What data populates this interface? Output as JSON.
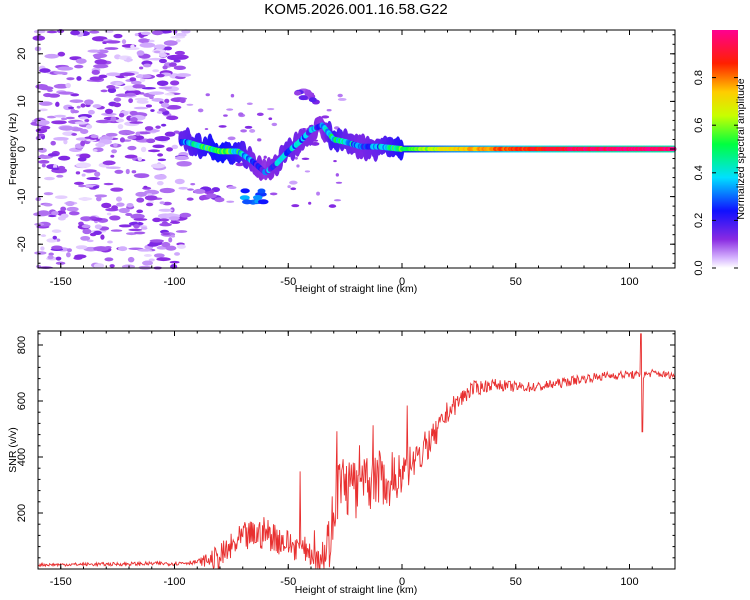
{
  "title": "KOM5.2026.001.16.58.G22",
  "chart_data": [
    {
      "type": "heatmap",
      "xlabel": "Height of straight line (km)",
      "ylabel": "Frequency (Hz)",
      "xlim": [
        -160,
        120
      ],
      "ylim": [
        -25,
        25
      ],
      "xticks": [
        -150,
        -100,
        -50,
        0,
        50,
        100
      ],
      "yticks": [
        -20,
        -10,
        0,
        10,
        20
      ],
      "colorbar": {
        "label": "Normalized spectral amplitude",
        "range": [
          0,
          1
        ],
        "ticks": [
          "0.0",
          "0.2",
          "0.4",
          "0.6",
          "0.8"
        ]
      },
      "ridge": [
        {
          "x": -95,
          "y": 1.5,
          "a": 0.35
        },
        {
          "x": -88,
          "y": 0.5,
          "a": 0.45
        },
        {
          "x": -80,
          "y": -0.5,
          "a": 0.55
        },
        {
          "x": -72,
          "y": -0.5,
          "a": 0.45
        },
        {
          "x": -66,
          "y": -2.5,
          "a": 0.3
        },
        {
          "x": -60,
          "y": -5,
          "a": 0.25
        },
        {
          "x": -55,
          "y": -3,
          "a": 0.3
        },
        {
          "x": -50,
          "y": -0.5,
          "a": 0.35
        },
        {
          "x": -45,
          "y": 1.5,
          "a": 0.3
        },
        {
          "x": -40,
          "y": 4,
          "a": 0.3
        },
        {
          "x": -35,
          "y": 5,
          "a": 0.25
        },
        {
          "x": -30,
          "y": 2,
          "a": 0.45
        },
        {
          "x": -25,
          "y": 1.5,
          "a": 0.35
        },
        {
          "x": -18,
          "y": 0.5,
          "a": 0.3
        },
        {
          "x": -10,
          "y": 0.5,
          "a": 0.35
        },
        {
          "x": 0,
          "y": 0,
          "a": 0.5
        },
        {
          "x": 10,
          "y": 0,
          "a": 0.6
        },
        {
          "x": 20,
          "y": 0,
          "a": 0.7
        },
        {
          "x": 30,
          "y": 0,
          "a": 0.75
        },
        {
          "x": 40,
          "y": 0,
          "a": 0.8
        },
        {
          "x": 60,
          "y": 0,
          "a": 0.88
        },
        {
          "x": 80,
          "y": 0,
          "a": 0.95
        },
        {
          "x": 100,
          "y": 0,
          "a": 0.97
        },
        {
          "x": 120,
          "y": 0,
          "a": 0.98
        }
      ],
      "branches": [
        {
          "x": -65,
          "y": -10,
          "a": 0.3
        },
        {
          "x": -42,
          "y": 11,
          "a": 0.15
        },
        {
          "x": -85,
          "y": -9.5,
          "a": 0.12
        }
      ]
    },
    {
      "type": "line",
      "xlabel": "Height of straight line (km)",
      "ylabel": "SNR (v/v)",
      "xlim": [
        -160,
        120
      ],
      "ylim": [
        0,
        850
      ],
      "xticks": [
        -150,
        -100,
        -50,
        0,
        50,
        100
      ],
      "yticks": [
        200,
        400,
        600,
        800
      ],
      "series": [
        {
          "name": "SNR",
          "color": "#e83030",
          "trend_x": [
            -160,
            -120,
            -100,
            -90,
            -80,
            -70,
            -60,
            -50,
            -40,
            -35,
            -32,
            -28,
            -25,
            -20,
            -15,
            -10,
            -5,
            0,
            5,
            10,
            15,
            20,
            25,
            30,
            40,
            50,
            60,
            70,
            80,
            90,
            100,
            105,
            110,
            120
          ],
          "trend_y": [
            15,
            18,
            20,
            25,
            40,
            110,
            130,
            90,
            60,
            50,
            100,
            300,
            300,
            280,
            300,
            330,
            300,
            350,
            380,
            430,
            480,
            560,
            600,
            640,
            660,
            650,
            650,
            665,
            680,
            690,
            695,
            690,
            700,
            690
          ],
          "noise_x": [
            -160,
            -90,
            -80,
            -60,
            -40,
            -30,
            -20,
            0,
            20,
            40,
            100,
            120
          ],
          "noise_amp": [
            5,
            8,
            50,
            60,
            45,
            120,
            110,
            80,
            40,
            20,
            15,
            12
          ],
          "spike": {
            "x": 105,
            "y_max": 840,
            "y_min": 490
          }
        }
      ]
    }
  ]
}
